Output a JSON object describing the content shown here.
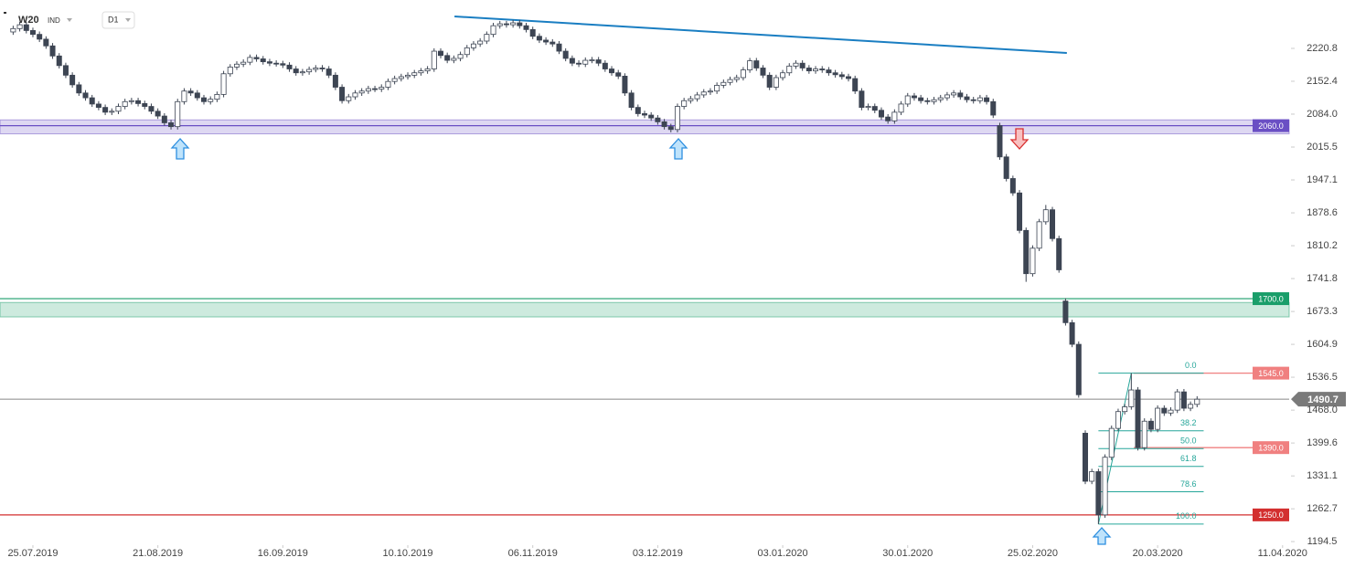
{
  "header": {
    "symbol": "W20",
    "market": "IND",
    "interval": "D1"
  },
  "chart_data": {
    "type": "candlestick",
    "open": [
      2255,
      2262,
      2270,
      2258,
      2250,
      2240,
      2226,
      2205,
      2185,
      2165,
      2145,
      2128,
      2118,
      2105,
      2098,
      2088,
      2090,
      2100,
      2110,
      2112,
      2106,
      2100,
      2090,
      2080,
      2066,
      2058,
      2110,
      2132,
      2128,
      2118,
      2110,
      2115,
      2125,
      2168,
      2182,
      2188,
      2192,
      2202,
      2199,
      2193,
      2190,
      2189,
      2186,
      2178,
      2170,
      2172,
      2177,
      2180,
      2178,
      2165,
      2140,
      2112,
      2120,
      2128,
      2132,
      2137,
      2136,
      2140,
      2152,
      2158,
      2162,
      2165,
      2170,
      2174,
      2178,
      2215,
      2206,
      2196,
      2200,
      2208,
      2222,
      2230,
      2236,
      2250,
      2268,
      2272,
      2270,
      2274,
      2268,
      2260,
      2246,
      2238,
      2234,
      2230,
      2215,
      2200,
      2190,
      2188,
      2196,
      2197,
      2190,
      2178,
      2170,
      2163,
      2128,
      2098,
      2085,
      2082,
      2076,
      2068,
      2058,
      2052,
      2100,
      2112,
      2116,
      2124,
      2130,
      2132,
      2144,
      2150,
      2156,
      2160,
      2176,
      2195,
      2180,
      2165,
      2140,
      2160,
      2170,
      2184,
      2190,
      2180,
      2174,
      2178,
      2176,
      2170,
      2166,
      2162,
      2158,
      2132,
      2098,
      2100,
      2092,
      2078,
      2070,
      2088,
      2105,
      2122,
      2118,
      2112,
      2110,
      2114,
      2118,
      2124,
      2128,
      2120,
      2114,
      2112,
      2118,
      2110,
      2060,
      1995,
      1950,
      1920,
      1842,
      1752,
      1805,
      1860,
      1885,
      1825,
      1695,
      1650,
      1605,
      1420,
      1320,
      1340,
      1250,
      1370,
      1430,
      1465,
      1475,
      1510,
      1390,
      1445,
      1428,
      1472,
      1462,
      1468,
      1506,
      1472,
      1480
    ],
    "high": [
      2268,
      2276,
      2276,
      2264,
      2256,
      2246,
      2232,
      2211,
      2191,
      2171,
      2151,
      2134,
      2124,
      2111,
      2104,
      2096,
      2106,
      2116,
      2118,
      2118,
      2112,
      2106,
      2096,
      2086,
      2072,
      2116,
      2138,
      2138,
      2134,
      2124,
      2121,
      2131,
      2174,
      2188,
      2194,
      2198,
      2208,
      2208,
      2205,
      2199,
      2196,
      2195,
      2192,
      2184,
      2178,
      2183,
      2186,
      2186,
      2184,
      2171,
      2146,
      2126,
      2134,
      2138,
      2143,
      2143,
      2146,
      2158,
      2164,
      2168,
      2171,
      2176,
      2180,
      2184,
      2221,
      2221,
      2212,
      2206,
      2214,
      2228,
      2236,
      2242,
      2256,
      2274,
      2278,
      2278,
      2280,
      2280,
      2274,
      2266,
      2252,
      2244,
      2240,
      2236,
      2221,
      2206,
      2196,
      2202,
      2203,
      2203,
      2196,
      2184,
      2176,
      2169,
      2134,
      2104,
      2091,
      2088,
      2082,
      2074,
      2064,
      2106,
      2118,
      2122,
      2130,
      2136,
      2138,
      2150,
      2156,
      2162,
      2166,
      2182,
      2201,
      2201,
      2186,
      2171,
      2166,
      2176,
      2190,
      2196,
      2196,
      2186,
      2184,
      2184,
      2182,
      2176,
      2172,
      2168,
      2164,
      2138,
      2106,
      2106,
      2098,
      2084,
      2094,
      2111,
      2128,
      2128,
      2124,
      2118,
      2120,
      2124,
      2130,
      2134,
      2134,
      2126,
      2120,
      2124,
      2124,
      2116,
      2066,
      2001,
      1956,
      1926,
      1848,
      1811,
      1866,
      1895,
      1891,
      1831,
      1701,
      1656,
      1611,
      1426,
      1346,
      1346,
      1376,
      1436,
      1471,
      1481,
      1545,
      1516,
      1451,
      1451,
      1478,
      1478,
      1474,
      1512,
      1512,
      1486,
      1497
    ],
    "low": [
      2249,
      2256,
      2252,
      2244,
      2234,
      2220,
      2199,
      2179,
      2159,
      2139,
      2122,
      2112,
      2099,
      2092,
      2082,
      2082,
      2084,
      2094,
      2104,
      2100,
      2094,
      2084,
      2074,
      2060,
      2052,
      2052,
      2104,
      2122,
      2112,
      2104,
      2104,
      2109,
      2119,
      2162,
      2176,
      2182,
      2186,
      2193,
      2187,
      2184,
      2183,
      2180,
      2172,
      2164,
      2164,
      2166,
      2171,
      2172,
      2159,
      2134,
      2106,
      2106,
      2114,
      2122,
      2126,
      2130,
      2130,
      2134,
      2146,
      2152,
      2156,
      2159,
      2164,
      2168,
      2172,
      2200,
      2190,
      2190,
      2194,
      2202,
      2216,
      2224,
      2230,
      2244,
      2262,
      2264,
      2264,
      2262,
      2254,
      2240,
      2232,
      2228,
      2224,
      2209,
      2194,
      2184,
      2182,
      2182,
      2190,
      2184,
      2172,
      2164,
      2157,
      2122,
      2092,
      2079,
      2076,
      2070,
      2062,
      2052,
      2046,
      2046,
      2094,
      2106,
      2110,
      2118,
      2124,
      2126,
      2138,
      2144,
      2150,
      2154,
      2170,
      2174,
      2159,
      2134,
      2134,
      2154,
      2164,
      2178,
      2174,
      2168,
      2168,
      2170,
      2164,
      2160,
      2156,
      2152,
      2126,
      2092,
      2092,
      2086,
      2072,
      2064,
      2064,
      2082,
      2099,
      2112,
      2106,
      2104,
      2104,
      2108,
      2112,
      2118,
      2114,
      2108,
      2106,
      2106,
      2104,
      2076,
      1989,
      1944,
      1914,
      1836,
      1735,
      1746,
      1799,
      1854,
      1819,
      1754,
      1644,
      1599,
      1494,
      1314,
      1314,
      1231,
      1244,
      1364,
      1424,
      1459,
      1469,
      1384,
      1384,
      1422,
      1422,
      1456,
      1456,
      1462,
      1466,
      1466,
      1474
    ],
    "close": [
      2262,
      2270,
      2258,
      2250,
      2240,
      2226,
      2205,
      2185,
      2165,
      2145,
      2128,
      2118,
      2105,
      2098,
      2088,
      2090,
      2100,
      2110,
      2112,
      2106,
      2100,
      2090,
      2080,
      2066,
      2058,
      2110,
      2132,
      2128,
      2118,
      2110,
      2115,
      2125,
      2168,
      2182,
      2188,
      2192,
      2202,
      2199,
      2193,
      2190,
      2189,
      2186,
      2178,
      2170,
      2172,
      2177,
      2180,
      2178,
      2165,
      2140,
      2112,
      2120,
      2128,
      2132,
      2137,
      2136,
      2140,
      2152,
      2158,
      2162,
      2165,
      2170,
      2174,
      2178,
      2215,
      2206,
      2196,
      2200,
      2208,
      2222,
      2230,
      2236,
      2250,
      2268,
      2272,
      2270,
      2274,
      2268,
      2260,
      2246,
      2238,
      2234,
      2230,
      2215,
      2200,
      2190,
      2188,
      2196,
      2197,
      2190,
      2178,
      2170,
      2163,
      2128,
      2098,
      2085,
      2082,
      2076,
      2068,
      2058,
      2052,
      2100,
      2112,
      2116,
      2124,
      2130,
      2132,
      2144,
      2150,
      2156,
      2160,
      2176,
      2195,
      2180,
      2165,
      2140,
      2160,
      2170,
      2184,
      2190,
      2180,
      2174,
      2178,
      2176,
      2170,
      2166,
      2162,
      2158,
      2132,
      2098,
      2100,
      2092,
      2078,
      2070,
      2088,
      2105,
      2122,
      2118,
      2112,
      2110,
      2114,
      2118,
      2124,
      2128,
      2120,
      2114,
      2112,
      2118,
      2110,
      2082,
      1995,
      1950,
      1920,
      1842,
      1752,
      1805,
      1860,
      1885,
      1825,
      1760,
      1650,
      1605,
      1500,
      1320,
      1340,
      1250,
      1370,
      1430,
      1465,
      1475,
      1510,
      1390,
      1445,
      1428,
      1472,
      1462,
      1468,
      1506,
      1472,
      1480,
      1490.7
    ],
    "up_color": "#ffffff",
    "down_color": "#3d4553",
    "xlim": [
      -2,
      194
    ],
    "xticks": [
      {
        "value": 3,
        "label": "25.07.2019"
      },
      {
        "value": 22,
        "label": "21.08.2019"
      },
      {
        "value": 41,
        "label": "16.09.2019"
      },
      {
        "value": 60,
        "label": "10.10.2019"
      },
      {
        "value": 79,
        "label": "06.11.2019"
      },
      {
        "value": 98,
        "label": "03.12.2019"
      },
      {
        "value": 117,
        "label": "03.01.2020"
      },
      {
        "value": 136,
        "label": "30.01.2020"
      },
      {
        "value": 155,
        "label": "25.02.2020"
      },
      {
        "value": 174,
        "label": "20.03.2020"
      },
      {
        "value": 193,
        "label": "11.04.2020"
      }
    ],
    "ylim": [
      1190.8,
      2312
    ],
    "yticks": [
      2220.8,
      2152.4,
      {
        "value": 2084,
        "label": "2084.0"
      },
      2015.5,
      1947.1,
      1878.6,
      1810.2,
      1741.8,
      1673.3,
      1604.9,
      1536.5,
      {
        "value": 1468,
        "label": "1468.0"
      },
      1399.6,
      1331.1,
      1262.7,
      1194.5
    ],
    "last_price": 1490.7,
    "zones": [
      {
        "value": 2060,
        "label": "2060.0",
        "range": [
          2043,
          2072
        ],
        "color": "#6a4fc4"
      },
      {
        "value": 1700,
        "label": "1700.0",
        "range": [
          1662,
          1692
        ],
        "color": "#1a9e6a"
      }
    ],
    "levels": [
      {
        "value": 1545,
        "label": "1545.0",
        "color": "#f08080"
      },
      {
        "value": 1390,
        "label": "1390.0",
        "color": "#f08080"
      },
      {
        "value": 1250,
        "label": "1250.0",
        "color": "#d32f2f"
      }
    ],
    "trendline": {
      "points": [
        [
          67.1,
          2287.3
        ],
        [
          160.2,
          2211.3
        ]
      ],
      "color": "#1a7ec2"
    },
    "fibonacci": {
      "low": [
        165,
        1231
      ],
      "high": [
        170,
        1545
      ],
      "right": 181,
      "color": "#26a69a",
      "levels": [
        {
          "value": 0,
          "label": "0.0"
        },
        38.2,
        {
          "value": 50,
          "label": "50.0"
        },
        61.8,
        78.6,
        {
          "value": 100,
          "label": "100.0"
        }
      ]
    }
  }
}
